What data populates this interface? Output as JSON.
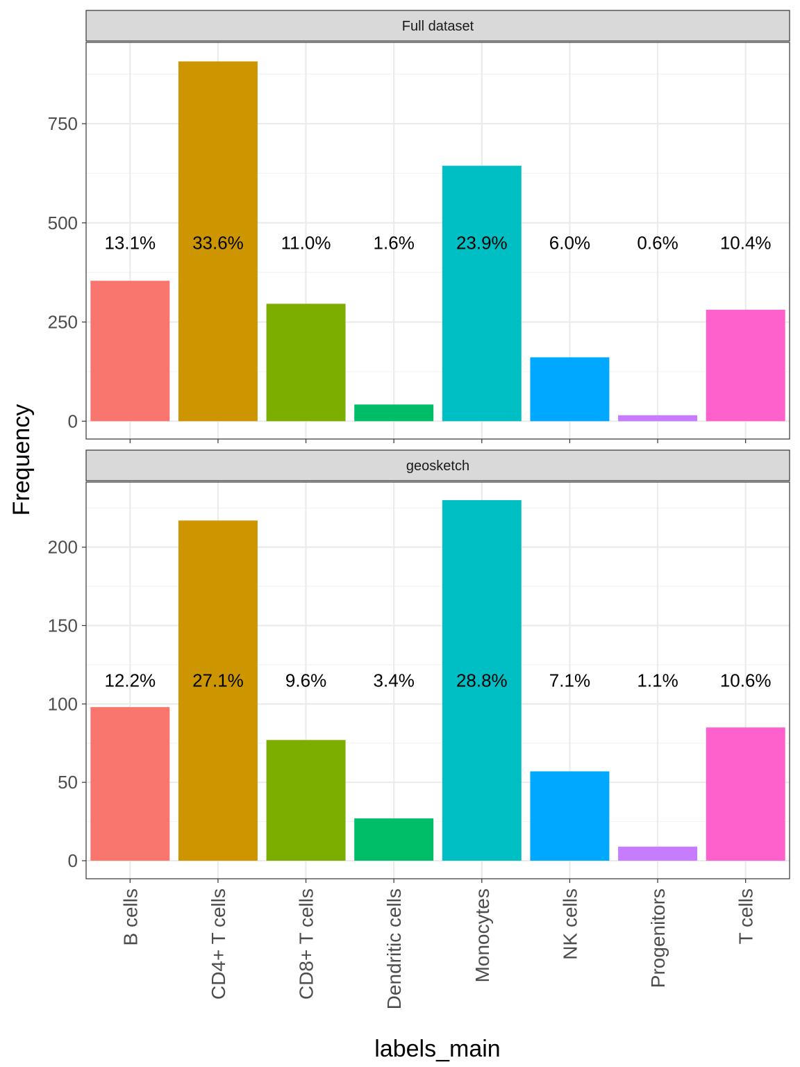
{
  "chart_data": {
    "type": "bar",
    "xlabel": "labels_main",
    "ylabel": "Frequency",
    "categories": [
      "B cells",
      "CD4+ T cells",
      "CD8+ T cells",
      "Dendritic cells",
      "Monocytes",
      "NK cells",
      "Progenitors",
      "T cells"
    ],
    "colors": [
      "#F8766D",
      "#CD9600",
      "#7CAE00",
      "#00BE67",
      "#00BFC4",
      "#00A9FF",
      "#C77CFF",
      "#FF61CC"
    ],
    "grid": true,
    "legend": "none",
    "panels": [
      {
        "strip": "Full dataset",
        "values": [
          354,
          907,
          296,
          42,
          644,
          161,
          15,
          281
        ],
        "labels": [
          "13.1%",
          "33.6%",
          "11.0%",
          "1.6%",
          "23.9%",
          "6.0%",
          "0.6%",
          "10.4%"
        ],
        "label_y": 450,
        "ylim": [
          -45,
          955
        ],
        "yticks": [
          0,
          250,
          500,
          750
        ],
        "yticks_text": [
          "0",
          "250",
          "500",
          "750"
        ]
      },
      {
        "strip": "geosketch",
        "values": [
          98,
          217,
          77,
          27,
          230,
          57,
          9,
          85
        ],
        "labels": [
          "12.2%",
          "27.1%",
          "9.6%",
          "3.4%",
          "28.8%",
          "7.1%",
          "1.1%",
          "10.6%"
        ],
        "label_y": 115,
        "ylim": [
          -11.5,
          241.5
        ],
        "yticks": [
          0,
          50,
          100,
          150,
          200
        ],
        "yticks_text": [
          "0",
          "50",
          "100",
          "150",
          "200"
        ]
      }
    ]
  }
}
